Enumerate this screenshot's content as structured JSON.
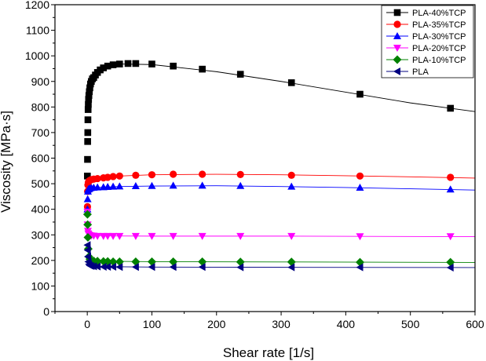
{
  "chart_data": {
    "type": "scatter",
    "title": "",
    "xlabel": "Shear rate [1/s]",
    "ylabel": "Viscosity [MPa·s]",
    "xlim": [
      -50,
      600
    ],
    "ylim": [
      0,
      1200
    ],
    "xticks": [
      0,
      100,
      200,
      300,
      400,
      500,
      600
    ],
    "yticks": [
      0,
      100,
      200,
      300,
      400,
      500,
      600,
      700,
      800,
      900,
      1000,
      1100,
      1200
    ],
    "legend_position": "top-right",
    "grid": false,
    "series": [
      {
        "name": "PLA-40%TCP",
        "color": "#000000",
        "marker": "square",
        "x": [
          0.2,
          0.4,
          0.6,
          0.8,
          1.0,
          1.3,
          1.6,
          2.0,
          2.5,
          3.2,
          4.0,
          5.0,
          6.3,
          8.0,
          10,
          12.6,
          15.8,
          20,
          25,
          31.6,
          40,
          50,
          63,
          75,
          100,
          133,
          178,
          237,
          316,
          422,
          562
        ],
        "y": [
          530,
          595,
          665,
          700,
          750,
          790,
          810,
          830,
          845,
          860,
          875,
          890,
          900,
          910,
          915,
          925,
          935,
          945,
          953,
          960,
          965,
          968,
          970,
          970,
          968,
          960,
          948,
          928,
          895,
          850,
          795
        ],
        "fit": [
          [
            0,
            880
          ],
          [
            5,
            895
          ],
          [
            20,
            945
          ],
          [
            50,
            968
          ],
          [
            100,
            966
          ],
          [
            200,
            938
          ],
          [
            300,
            900
          ],
          [
            400,
            858
          ],
          [
            500,
            816
          ],
          [
            600,
            782
          ]
        ]
      },
      {
        "name": "PLA-35%TCP",
        "color": "#ff0000",
        "marker": "circle",
        "x": [
          0.3,
          0.6,
          1.0,
          1.6,
          2.5,
          4.0,
          6.3,
          10,
          15.8,
          25,
          31.6,
          40,
          50,
          75,
          100,
          133,
          178,
          237,
          316,
          422,
          562
        ],
        "y": [
          410,
          470,
          495,
          505,
          510,
          513,
          516,
          518,
          520,
          523,
          525,
          528,
          530,
          533,
          535,
          537,
          537,
          536,
          533,
          530,
          525
        ],
        "fit": [
          [
            0,
            505
          ],
          [
            20,
            521
          ],
          [
            50,
            530
          ],
          [
            100,
            535
          ],
          [
            200,
            537
          ],
          [
            300,
            535
          ],
          [
            400,
            531
          ],
          [
            500,
            527
          ],
          [
            600,
            522
          ]
        ]
      },
      {
        "name": "PLA-30%TCP",
        "color": "#0000ff",
        "marker": "triangle-up",
        "x": [
          0.3,
          0.6,
          1.0,
          1.6,
          2.5,
          4.0,
          6.3,
          10,
          15.8,
          25,
          31.6,
          40,
          50,
          75,
          100,
          133,
          178,
          237,
          316,
          422,
          562
        ],
        "y": [
          400,
          440,
          470,
          478,
          480,
          482,
          484,
          485,
          486,
          487,
          488,
          489,
          490,
          491,
          492,
          493,
          493,
          492,
          489,
          485,
          478
        ],
        "fit": [
          [
            0,
            478
          ],
          [
            20,
            486
          ],
          [
            50,
            489
          ],
          [
            100,
            491
          ],
          [
            200,
            492
          ],
          [
            300,
            489
          ],
          [
            400,
            485
          ],
          [
            500,
            480
          ],
          [
            600,
            475
          ]
        ]
      },
      {
        "name": "PLA-20%TCP",
        "color": "#ff00ff",
        "marker": "triangle-down",
        "x": [
          0.3,
          0.6,
          1.0,
          1.6,
          2.5,
          4.0,
          6.3,
          10,
          15.8,
          25,
          31.6,
          40,
          50,
          75,
          100,
          133,
          178,
          237,
          316,
          422,
          562
        ],
        "y": [
          390,
          340,
          315,
          305,
          300,
          298,
          297,
          296,
          295,
          295,
          295,
          295,
          295,
          295,
          295,
          295,
          295,
          295,
          295,
          294,
          294
        ],
        "fit": [
          [
            0,
            300
          ],
          [
            20,
            296
          ],
          [
            100,
            295
          ],
          [
            300,
            295
          ],
          [
            600,
            293
          ]
        ]
      },
      {
        "name": "PLA-10%TCP",
        "color": "#008000",
        "marker": "diamond",
        "x": [
          0.3,
          0.6,
          1.0,
          1.6,
          2.5,
          4.0,
          6.3,
          10,
          15.8,
          25,
          31.6,
          40,
          50,
          75,
          100,
          133,
          178,
          237,
          316,
          422,
          562
        ],
        "y": [
          380,
          340,
          290,
          245,
          215,
          205,
          200,
          198,
          197,
          196,
          196,
          195,
          195,
          195,
          195,
          195,
          195,
          194,
          194,
          193,
          193
        ],
        "fit": [
          [
            0,
            200
          ],
          [
            20,
            197
          ],
          [
            100,
            195
          ],
          [
            300,
            194
          ],
          [
            600,
            192
          ]
        ]
      },
      {
        "name": "PLA",
        "color": "#000080",
        "marker": "triangle-left",
        "x": [
          0.3,
          0.6,
          1.0,
          1.6,
          2.5,
          4.0,
          6.3,
          10,
          15.8,
          25,
          31.6,
          40,
          50,
          75,
          100,
          133,
          178,
          237,
          316,
          422,
          562
        ],
        "y": [
          260,
          240,
          215,
          195,
          185,
          180,
          178,
          177,
          176,
          175,
          175,
          175,
          174,
          174,
          174,
          174,
          174,
          173,
          173,
          173,
          172
        ],
        "fit": [
          [
            0,
            180
          ],
          [
            20,
            176
          ],
          [
            100,
            174
          ],
          [
            300,
            173
          ],
          [
            600,
            172
          ]
        ]
      }
    ]
  }
}
